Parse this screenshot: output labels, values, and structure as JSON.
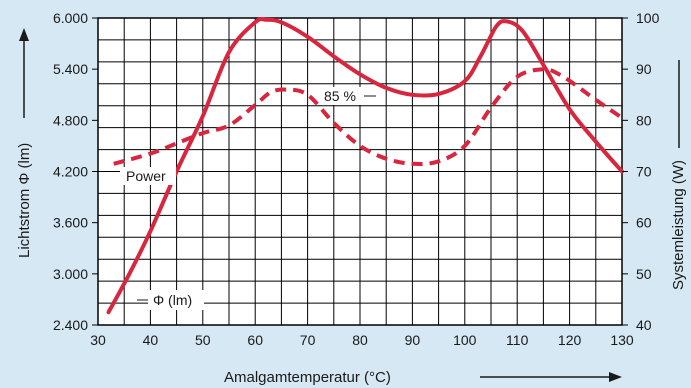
{
  "colors": {
    "background": "#d6e8f4",
    "plot_background": "#ffffff",
    "grid": "#000000",
    "series": "#d7263d",
    "text": "#1a1a1a"
  },
  "chart_data": {
    "type": "line",
    "title": "",
    "xlabel": "Amalgamtemperatur (°C)",
    "ylabel_left": "Lichtstrom Φ (lm)",
    "ylabel_right": "Systemleistung (W)",
    "xlim": [
      30,
      130
    ],
    "ylim_left": [
      2400,
      6000
    ],
    "ylim_right": [
      40,
      100
    ],
    "x_ticks": [
      "30",
      "40",
      "50",
      "60",
      "70",
      "80",
      "90",
      "100",
      "110",
      "120",
      "130"
    ],
    "y_left_ticks": [
      "2.400",
      "3.000",
      "3.600",
      "4.200",
      "4.800",
      "5.400",
      "6.000"
    ],
    "y_right_ticks": [
      "40",
      "50",
      "60",
      "70",
      "80",
      "90",
      "100"
    ],
    "grid": true,
    "series": [
      {
        "name": "Φ (lm)",
        "axis": "left",
        "style": "solid",
        "x": [
          32,
          36,
          40,
          45,
          50,
          55,
          60,
          62,
          65,
          70,
          75,
          80,
          85,
          90,
          95,
          100,
          103,
          106,
          108,
          111,
          115,
          120,
          125,
          130
        ],
        "y": [
          2550,
          3000,
          3500,
          4200,
          4850,
          5600,
          5950,
          5980,
          5950,
          5780,
          5550,
          5340,
          5180,
          5100,
          5110,
          5260,
          5550,
          5900,
          5960,
          5850,
          5450,
          4930,
          4550,
          4200
        ]
      },
      {
        "name": "Power",
        "axis": "right",
        "style": "dashed",
        "x": [
          33,
          40,
          45,
          50,
          55,
          60,
          63,
          66,
          70,
          75,
          80,
          85,
          90,
          95,
          100,
          105,
          110,
          115,
          118,
          121,
          125,
          130
        ],
        "y": [
          71.5,
          73.5,
          75.5,
          77.5,
          79,
          83,
          85.5,
          86,
          85,
          79.5,
          75,
          72.5,
          71.5,
          72,
          75,
          82.5,
          88.5,
          90,
          89,
          87,
          84,
          80.5
        ]
      }
    ],
    "annotations": [
      "Power",
      "Φ (lm)",
      "85 %"
    ]
  }
}
